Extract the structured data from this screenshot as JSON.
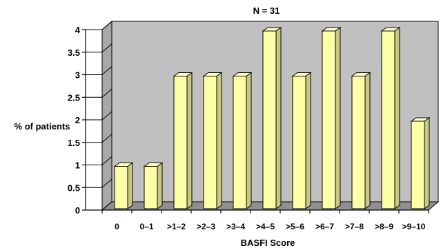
{
  "chart_data": {
    "type": "bar",
    "title": "N = 31",
    "xlabel": "BASFI  Score",
    "ylabel": "% of patients",
    "categories": [
      "0",
      "0–1",
      ">1–2",
      ">2–3",
      ">3–4",
      ">4–5",
      ">5–6",
      ">6–7",
      ">7–8",
      ">8–9",
      ">9–10"
    ],
    "values": [
      1,
      1,
      3,
      3,
      3,
      4,
      3,
      4,
      3,
      4,
      2
    ],
    "yticks": [
      "0",
      "0.5",
      "1",
      "1.5",
      "2",
      "2.5",
      "3",
      "3.5",
      "4"
    ],
    "ylim": [
      0,
      4
    ],
    "grid": false,
    "colors": {
      "bar_front": "#FFFFA8",
      "bar_top": "#FFFFD2",
      "bar_side": "#C8C880",
      "back_wall": "#C0C0C0",
      "side_wall": "#A8A8A8",
      "floor": "#909090"
    }
  }
}
